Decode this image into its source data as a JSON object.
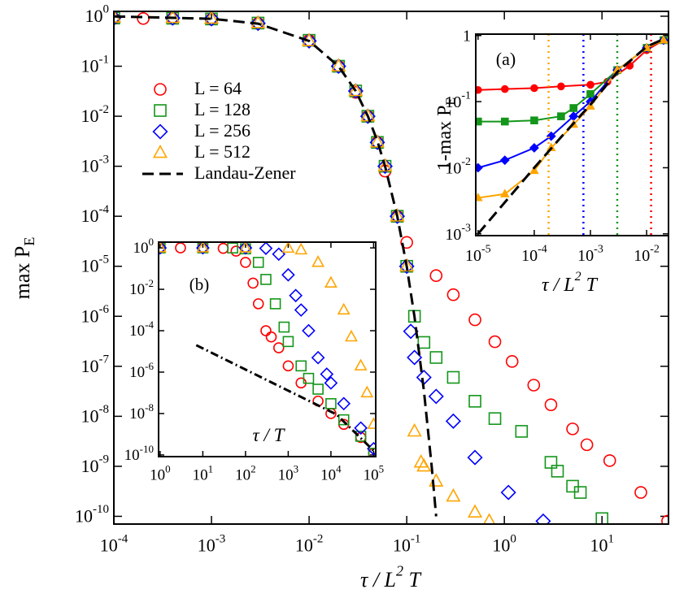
{
  "chart_data": [
    {
      "type": "scatter",
      "xscale": "log",
      "yscale": "log",
      "xlabel": [
        "τ / L",
        "2",
        " T"
      ],
      "ylabel": [
        "max P",
        "E"
      ],
      "xlim": [
        0.0001,
        48
      ],
      "ylim": [
        7e-11,
        1.25
      ],
      "xticks": [
        {
          "value": 0.0001,
          "label": "10",
          "exponent": "-4"
        },
        {
          "value": 0.001,
          "label": "10",
          "exponent": "-3"
        },
        {
          "value": 0.01,
          "label": "10",
          "exponent": "-2"
        },
        {
          "value": 0.1,
          "label": "10",
          "exponent": "-1"
        },
        {
          "value": 1,
          "label": "10",
          "exponent": "0"
        },
        {
          "value": 10,
          "label": "10",
          "exponent": "1"
        }
      ],
      "yticks": [
        {
          "value": 1,
          "label": "10",
          "exponent": "0"
        },
        {
          "value": 0.1,
          "label": "10",
          "exponent": "-1"
        },
        {
          "value": 0.01,
          "label": "10",
          "exponent": "-2"
        },
        {
          "value": 0.001,
          "label": "10",
          "exponent": "-3"
        },
        {
          "value": 0.0001,
          "label": "10",
          "exponent": "-4"
        },
        {
          "value": 1e-05,
          "label": "10",
          "exponent": "-5"
        },
        {
          "value": 1e-06,
          "label": "10",
          "exponent": "-6"
        },
        {
          "value": 1e-07,
          "label": "10",
          "exponent": "-7"
        },
        {
          "value": 1e-08,
          "label": "10",
          "exponent": "-8"
        },
        {
          "value": 1e-09,
          "label": "10",
          "exponent": "-9"
        },
        {
          "value": 1e-10,
          "label": "10",
          "exponent": "-10"
        }
      ],
      "legend": "upper left",
      "series": [
        {
          "name": "L = 64",
          "color": "#ff0000",
          "marker": "circle",
          "filled": false,
          "x": [
            0.0001,
            0.0002,
            0.0004,
            0.001,
            0.003,
            0.01,
            0.02,
            0.03,
            0.04,
            0.05,
            0.06,
            0.08,
            0.1,
            0.2,
            0.3,
            0.5,
            0.8,
            1.2,
            2,
            3,
            5,
            7,
            12,
            25,
            47
          ],
          "values": [
            0.9,
            0.9,
            0.9,
            0.87,
            0.72,
            0.33,
            0.1,
            0.03,
            0.01,
            0.003,
            0.0008,
            0.0001,
            3e-05,
            6.5e-06,
            2.7e-06,
            8.5e-07,
            3.1e-07,
            1.25e-07,
            4.2e-08,
            1.7e-08,
            5.6e-09,
            2.7e-09,
            1.3e-09,
            3e-10,
            8e-11
          ]
        },
        {
          "name": "L = 128",
          "color": "#13961a",
          "marker": "square",
          "filled": false,
          "x": [
            0.0001,
            0.0004,
            0.001,
            0.003,
            0.01,
            0.02,
            0.03,
            0.04,
            0.05,
            0.06,
            0.08,
            0.1,
            0.12,
            0.15,
            0.2,
            0.3,
            0.5,
            0.8,
            1.5,
            3,
            3.5,
            5,
            6,
            10
          ],
          "values": [
            0.92,
            0.91,
            0.88,
            0.73,
            0.33,
            0.1,
            0.032,
            0.01,
            0.003,
            0.001,
            0.0001,
            1e-05,
            1e-06,
            3e-07,
            1.5e-07,
            6e-08,
            2e-08,
            9e-09,
            5e-09,
            1.2e-09,
            8e-10,
            4e-10,
            3e-10,
            9e-11
          ]
        },
        {
          "name": "L = 256",
          "color": "#0000ff",
          "marker": "diamond",
          "filled": false,
          "x": [
            0.0001,
            0.0004,
            0.001,
            0.003,
            0.01,
            0.02,
            0.03,
            0.04,
            0.05,
            0.06,
            0.08,
            0.1,
            0.11,
            0.12,
            0.15,
            0.2,
            0.3,
            0.5,
            1.1,
            2.5
          ],
          "values": [
            0.93,
            0.92,
            0.89,
            0.72,
            0.32,
            0.1,
            0.032,
            0.01,
            0.003,
            0.001,
            0.0001,
            1e-05,
            5e-07,
            1.5e-07,
            6e-08,
            2.5e-08,
            8e-09,
            1.5e-09,
            3e-10,
            8e-11
          ]
        },
        {
          "name": "L = 512",
          "color": "#ffa500",
          "marker": "triangle",
          "filled": false,
          "x": [
            0.0001,
            0.0004,
            0.001,
            0.003,
            0.01,
            0.02,
            0.03,
            0.04,
            0.05,
            0.06,
            0.08,
            0.1,
            0.12,
            0.14,
            0.15,
            0.2,
            0.3,
            0.5,
            0.7
          ],
          "values": [
            0.95,
            0.93,
            0.9,
            0.73,
            0.32,
            0.1,
            0.032,
            0.01,
            0.003,
            0.001,
            0.0001,
            1e-05,
            5e-09,
            1.2e-09,
            1e-09,
            5e-10,
            2.5e-10,
            1.2e-10,
            8e-11
          ]
        },
        {
          "name": "Landau-Zener",
          "color": "#000000",
          "line": "dashed",
          "x": [
            0.0001,
            0.001,
            0.003,
            0.01,
            0.02,
            0.03,
            0.04,
            0.05,
            0.06,
            0.08,
            0.1,
            0.12,
            0.15,
            0.18,
            0.2
          ],
          "values": [
            0.99,
            0.89,
            0.71,
            0.32,
            0.1,
            0.032,
            0.01,
            0.0032,
            0.001,
            0.0001,
            1e-05,
            1e-06,
            3.2e-08,
            1e-09,
            1e-10
          ]
        }
      ]
    },
    {
      "type": "line",
      "xscale": "log",
      "yscale": "log",
      "xlabel": [
        "τ / L",
        "2",
        " T"
      ],
      "ylabel": [
        "1-max P",
        "E"
      ],
      "annotation": "(a)",
      "xlim": [
        9.1e-06,
        0.0245
      ],
      "ylim": [
        0.00094,
        1.05
      ],
      "xticks": [
        {
          "value": 1e-05,
          "label": "10",
          "exponent": "-5"
        },
        {
          "value": 0.0001,
          "label": "10",
          "exponent": "-4"
        },
        {
          "value": 0.001,
          "label": "10",
          "exponent": "-3"
        },
        {
          "value": 0.01,
          "label": "10",
          "exponent": "-2"
        }
      ],
      "yticks": [
        {
          "value": 0.001,
          "label": "10",
          "exponent": "-3"
        },
        {
          "value": 0.01,
          "label": "10",
          "exponent": "-2"
        },
        {
          "value": 0.1,
          "label": "10",
          "exponent": "-1"
        },
        1
      ],
      "series": [
        {
          "color": "#ff0000",
          "marker": "circle",
          "filled": true,
          "line": "solid",
          "vline": 0.012,
          "x": [
            1e-05,
            3e-05,
            0.0001,
            0.0003,
            0.001,
            0.002,
            0.005,
            0.01,
            0.02
          ],
          "values": [
            0.15,
            0.155,
            0.16,
            0.17,
            0.18,
            0.2,
            0.35,
            0.6,
            0.85
          ]
        },
        {
          "color": "#13961a",
          "marker": "square",
          "filled": true,
          "line": "solid",
          "vline": 0.003,
          "x": [
            1e-05,
            3e-05,
            0.0001,
            0.0003,
            0.0005,
            0.001,
            0.003,
            0.01,
            0.02
          ],
          "values": [
            0.05,
            0.05,
            0.052,
            0.06,
            0.08,
            0.13,
            0.3,
            0.65,
            0.85
          ]
        },
        {
          "color": "#0000ff",
          "marker": "diamond",
          "filled": true,
          "line": "solid",
          "vline": 0.00075,
          "x": [
            1e-05,
            3e-05,
            0.0001,
            0.0002,
            0.0005,
            0.001,
            0.003,
            0.01,
            0.02
          ],
          "values": [
            0.01,
            0.013,
            0.02,
            0.03,
            0.06,
            0.1,
            0.3,
            0.65,
            0.85
          ]
        },
        {
          "color": "#ffa500",
          "marker": "triangle",
          "filled": true,
          "line": "solid",
          "vline": 0.00018,
          "x": [
            1e-05,
            3e-05,
            0.0001,
            0.0002,
            0.0005,
            0.001,
            0.003,
            0.01,
            0.02
          ],
          "values": [
            0.0035,
            0.004,
            0.009,
            0.02,
            0.045,
            0.085,
            0.3,
            0.65,
            0.85
          ]
        },
        {
          "color": "#000000",
          "line": "dashed",
          "x": [
            1e-05,
            0.0001,
            0.0003,
            0.001,
            0.003,
            0.01,
            0.02
          ],
          "values": [
            0.001,
            0.01,
            0.029,
            0.09,
            0.28,
            0.68,
            0.88
          ]
        }
      ]
    },
    {
      "type": "scatter",
      "xscale": "log",
      "yscale": "log",
      "xlabel": [
        "τ / T"
      ],
      "annotation": "(b)",
      "xlim": [
        0.92,
        112000
      ],
      "ylim": [
        8.3e-11,
        1.9
      ],
      "xticks": [
        {
          "value": 1,
          "label": "10",
          "exponent": "0"
        },
        {
          "value": 10,
          "label": "10",
          "exponent": "1"
        },
        {
          "value": 100,
          "label": "10",
          "exponent": "2"
        },
        {
          "value": 1000,
          "label": "10",
          "exponent": "3"
        },
        {
          "value": 10000,
          "label": "10",
          "exponent": "4"
        },
        {
          "value": 100000,
          "label": "10",
          "exponent": "5"
        }
      ],
      "yticks": [
        {
          "value": 1,
          "label": "10",
          "exponent": "0"
        },
        {
          "value": 0.01,
          "label": "10",
          "exponent": "-2"
        },
        {
          "value": 0.0001,
          "label": "10",
          "exponent": "-4"
        },
        {
          "value": 1e-06,
          "label": "10",
          "exponent": "-6"
        },
        {
          "value": 1e-08,
          "label": "10",
          "exponent": "-8"
        },
        {
          "value": 1e-10,
          "label": "10",
          "exponent": "-10"
        }
      ],
      "series": [
        {
          "color": "#ff0000",
          "marker": "circle",
          "filled": false,
          "x": [
            1,
            3,
            10,
            30,
            60,
            100,
            150,
            200,
            300,
            400,
            600,
            1000,
            2000,
            5000,
            10000,
            20000,
            50000,
            100000
          ],
          "values": [
            1,
            1,
            1,
            0.95,
            0.7,
            0.2,
            0.02,
            0.002,
            0.0001,
            5e-05,
            1.5e-05,
            2e-06,
            3e-07,
            4e-08,
            1e-08,
            3e-09,
            7e-10,
            1.2e-10
          ]
        },
        {
          "color": "#13961a",
          "marker": "square",
          "filled": false,
          "x": [
            1,
            10,
            50,
            100,
            200,
            300,
            500,
            800,
            1000,
            2000,
            3000,
            5000,
            10000,
            20000,
            50000,
            100000
          ],
          "values": [
            1,
            1,
            0.99,
            0.9,
            0.2,
            0.03,
            0.002,
            0.00015,
            3e-05,
            2e-06,
            5e-07,
            1.5e-07,
            3e-08,
            5e-09,
            8e-10,
            1.2e-10
          ]
        },
        {
          "color": "#0000ff",
          "marker": "diamond",
          "filled": false,
          "x": [
            1,
            10,
            100,
            300,
            600,
            1000,
            1500,
            2000,
            3000,
            5000,
            8000,
            10000,
            20000,
            50000,
            100000
          ],
          "values": [
            1,
            1,
            1,
            0.95,
            0.5,
            0.05,
            0.005,
            0.001,
            0.0001,
            5e-06,
            8e-07,
            3e-07,
            3e-08,
            2e-09,
            2e-10
          ]
        },
        {
          "color": "#ffa500",
          "marker": "triangle",
          "filled": false,
          "x": [
            1,
            10,
            100,
            1000,
            2000,
            5000,
            10000,
            20000,
            30000,
            50000,
            70000,
            100000
          ],
          "values": [
            1,
            1,
            1,
            0.97,
            0.8,
            0.2,
            0.02,
            0.001,
            5e-05,
            2e-06,
            1e-07,
            3e-09
          ]
        },
        {
          "color": "#000000",
          "line": "dashdot",
          "x": [
            7,
            380,
            13500,
            100000
          ],
          "values": [
            2e-05,
            3.4e-07,
            9e-09,
            1.6e-10
          ]
        }
      ]
    }
  ]
}
